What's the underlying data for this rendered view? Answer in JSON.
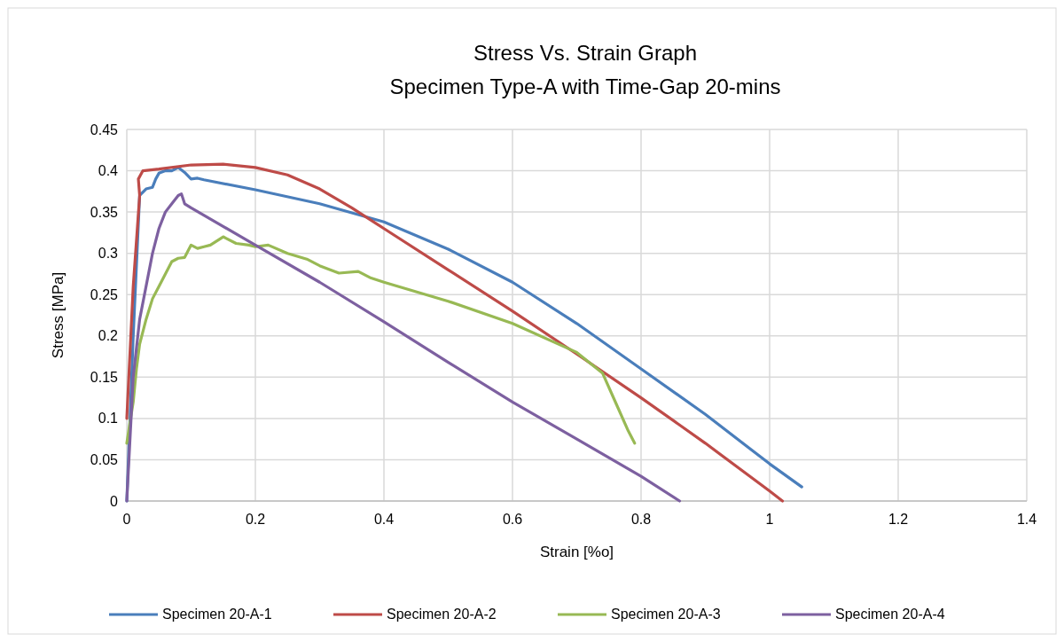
{
  "chart_data": {
    "type": "line",
    "title": "Stress Vs. Strain Graph",
    "subtitle": "Specimen Type-A with Time-Gap 20-mins",
    "xlabel": "Strain [%o]",
    "ylabel": "Stress [MPa]",
    "xlim": [
      0,
      1.4
    ],
    "xticks": [
      0,
      0.2,
      0.4,
      0.6,
      0.8,
      1,
      1.2,
      1.4
    ],
    "ylim": [
      0,
      0.45
    ],
    "yticks": [
      0,
      0.05,
      0.1,
      0.15,
      0.2,
      0.25,
      0.3,
      0.35,
      0.4,
      0.45
    ],
    "grid": true,
    "legend": "bottom",
    "marker": "none",
    "line_style": "solid",
    "series": [
      {
        "name": "Specimen 20-A-1",
        "color": "#4a7ebb",
        "x": [
          0,
          0.01,
          0.02,
          0.03,
          0.04,
          0.045,
          0.05,
          0.06,
          0.07,
          0.08,
          0.09,
          0.1,
          0.11,
          0.12,
          0.2,
          0.3,
          0.4,
          0.5,
          0.6,
          0.7,
          0.8,
          0.9,
          1.0,
          1.05
        ],
        "values": [
          0,
          0.2,
          0.37,
          0.378,
          0.38,
          0.39,
          0.397,
          0.4,
          0.4,
          0.404,
          0.398,
          0.39,
          0.391,
          0.389,
          0.377,
          0.36,
          0.338,
          0.305,
          0.265,
          0.215,
          0.16,
          0.105,
          0.045,
          0.017
        ]
      },
      {
        "name": "Specimen 20-A-2",
        "color": "#be4b48",
        "x": [
          0,
          0.01,
          0.02,
          0.018,
          0.025,
          0.05,
          0.1,
          0.15,
          0.2,
          0.25,
          0.3,
          0.35,
          0.4,
          0.5,
          0.6,
          0.7,
          0.8,
          0.9,
          1.0,
          1.02
        ],
        "values": [
          0.1,
          0.26,
          0.37,
          0.39,
          0.4,
          0.402,
          0.407,
          0.408,
          0.404,
          0.395,
          0.378,
          0.355,
          0.33,
          0.28,
          0.23,
          0.178,
          0.125,
          0.07,
          0.012,
          0
        ]
      },
      {
        "name": "Specimen 20-A-3",
        "color": "#98b954",
        "x": [
          0,
          0.01,
          0.015,
          0.02,
          0.025,
          0.03,
          0.04,
          0.05,
          0.06,
          0.07,
          0.08,
          0.09,
          0.1,
          0.11,
          0.12,
          0.13,
          0.15,
          0.17,
          0.19,
          0.2,
          0.22,
          0.25,
          0.28,
          0.3,
          0.33,
          0.36,
          0.38,
          0.4,
          0.5,
          0.6,
          0.7,
          0.74,
          0.76,
          0.78,
          0.79
        ],
        "values": [
          0.07,
          0.12,
          0.16,
          0.19,
          0.205,
          0.22,
          0.245,
          0.26,
          0.275,
          0.29,
          0.294,
          0.295,
          0.31,
          0.306,
          0.308,
          0.31,
          0.32,
          0.312,
          0.31,
          0.308,
          0.31,
          0.3,
          0.293,
          0.285,
          0.276,
          0.278,
          0.27,
          0.265,
          0.242,
          0.215,
          0.18,
          0.155,
          0.12,
          0.085,
          0.07
        ]
      },
      {
        "name": "Specimen 20-A-4",
        "color": "#7d60a0",
        "x": [
          0,
          0.01,
          0.02,
          0.03,
          0.04,
          0.05,
          0.06,
          0.07,
          0.08,
          0.085,
          0.09,
          0.1,
          0.2,
          0.3,
          0.4,
          0.5,
          0.6,
          0.7,
          0.8,
          0.86
        ],
        "values": [
          0,
          0.15,
          0.22,
          0.26,
          0.3,
          0.33,
          0.35,
          0.36,
          0.37,
          0.372,
          0.36,
          0.355,
          0.31,
          0.265,
          0.217,
          0.168,
          0.12,
          0.075,
          0.03,
          0
        ]
      }
    ]
  }
}
